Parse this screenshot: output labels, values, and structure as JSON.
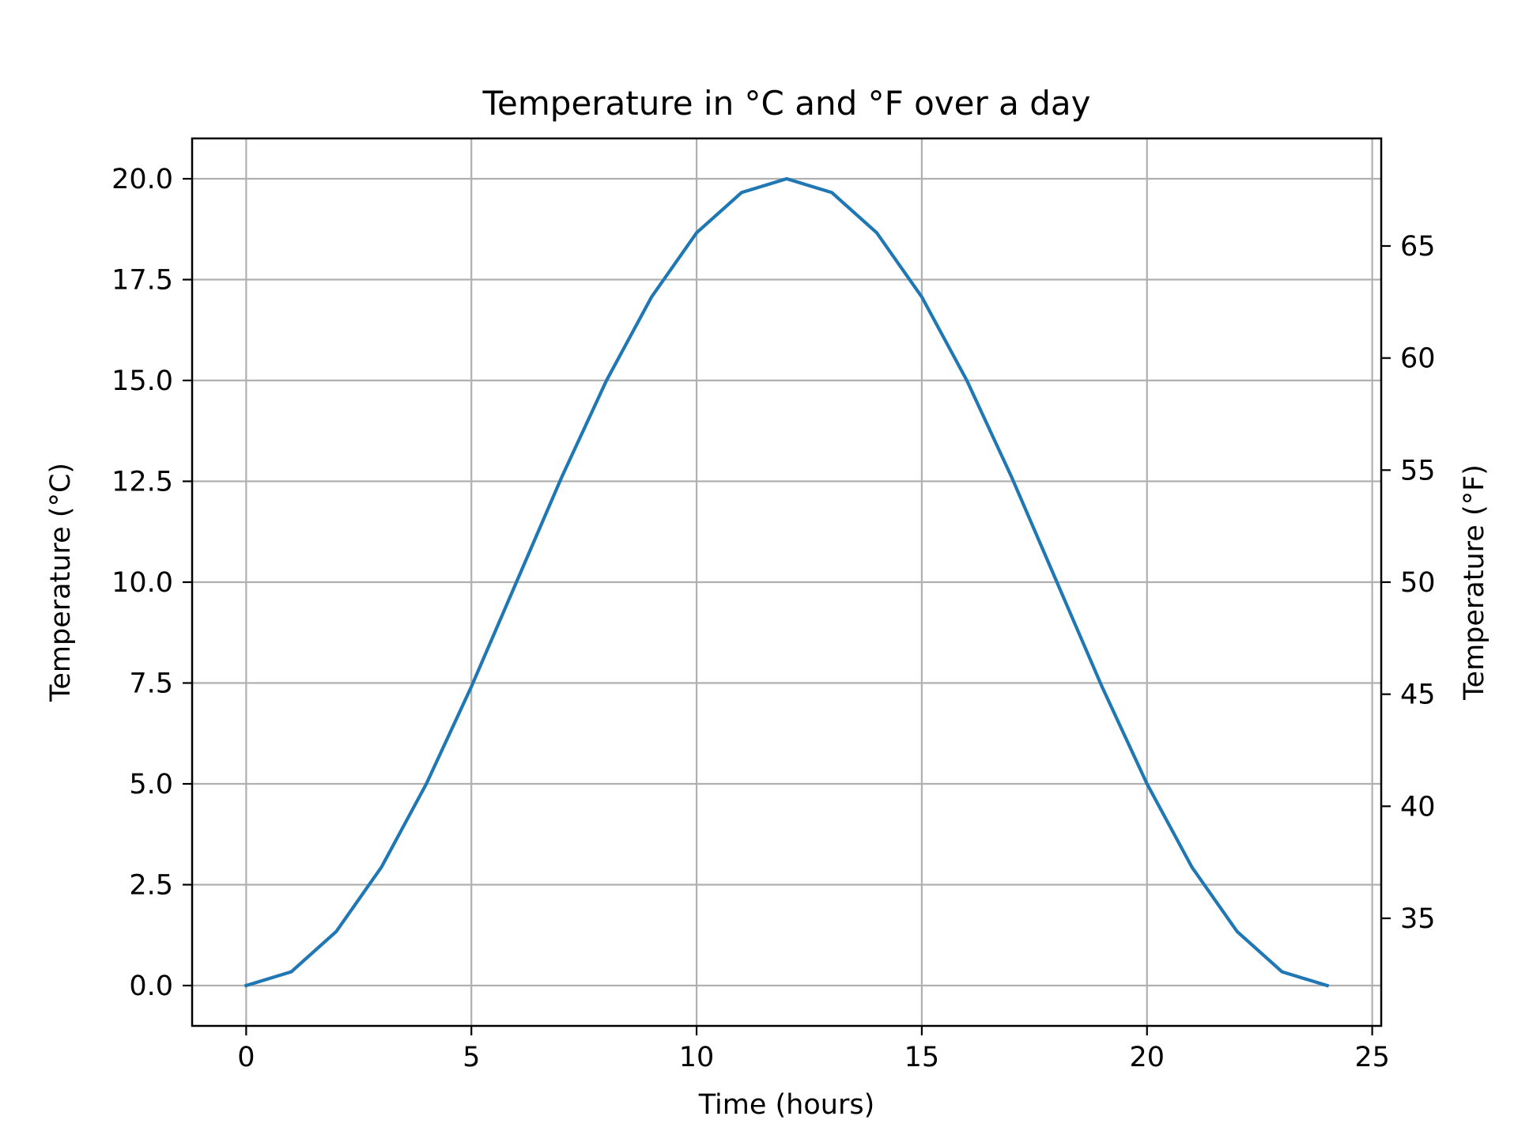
{
  "chart_data": {
    "type": "line",
    "title": "Temperature in °C and °F over a day",
    "xlabel": "Time (hours)",
    "ylabel": "Temperature (°C)",
    "ylabel_right": "Temperature (°F)",
    "xlim": [
      -1.2,
      25.2
    ],
    "ylim": [
      -1,
      21
    ],
    "ylim_right": [
      30.2,
      69.8
    ],
    "xticks": [
      0,
      5,
      10,
      15,
      20,
      25
    ],
    "yticks": [
      0.0,
      2.5,
      5.0,
      7.5,
      10.0,
      12.5,
      15.0,
      17.5,
      20.0
    ],
    "ytick_labels": [
      "0.0",
      "2.5",
      "5.0",
      "7.5",
      "10.0",
      "12.5",
      "15.0",
      "17.5",
      "20.0"
    ],
    "yticks_right": [
      35,
      40,
      45,
      50,
      55,
      60,
      65
    ],
    "grid": true,
    "series": [
      {
        "color": "#1f77b4",
        "x": [
          0,
          1,
          2,
          3,
          4,
          5,
          6,
          7,
          8,
          9,
          10,
          11,
          12,
          13,
          14,
          15,
          16,
          17,
          18,
          19,
          20,
          21,
          22,
          23,
          24
        ],
        "y": [
          0.0,
          0.34,
          1.34,
          2.93,
          5.0,
          7.41,
          10.0,
          12.59,
          15.0,
          17.07,
          18.66,
          19.66,
          20.0,
          19.66,
          18.66,
          17.07,
          15.0,
          12.59,
          10.0,
          7.41,
          5.0,
          2.93,
          1.34,
          0.34,
          0.0
        ]
      }
    ]
  }
}
